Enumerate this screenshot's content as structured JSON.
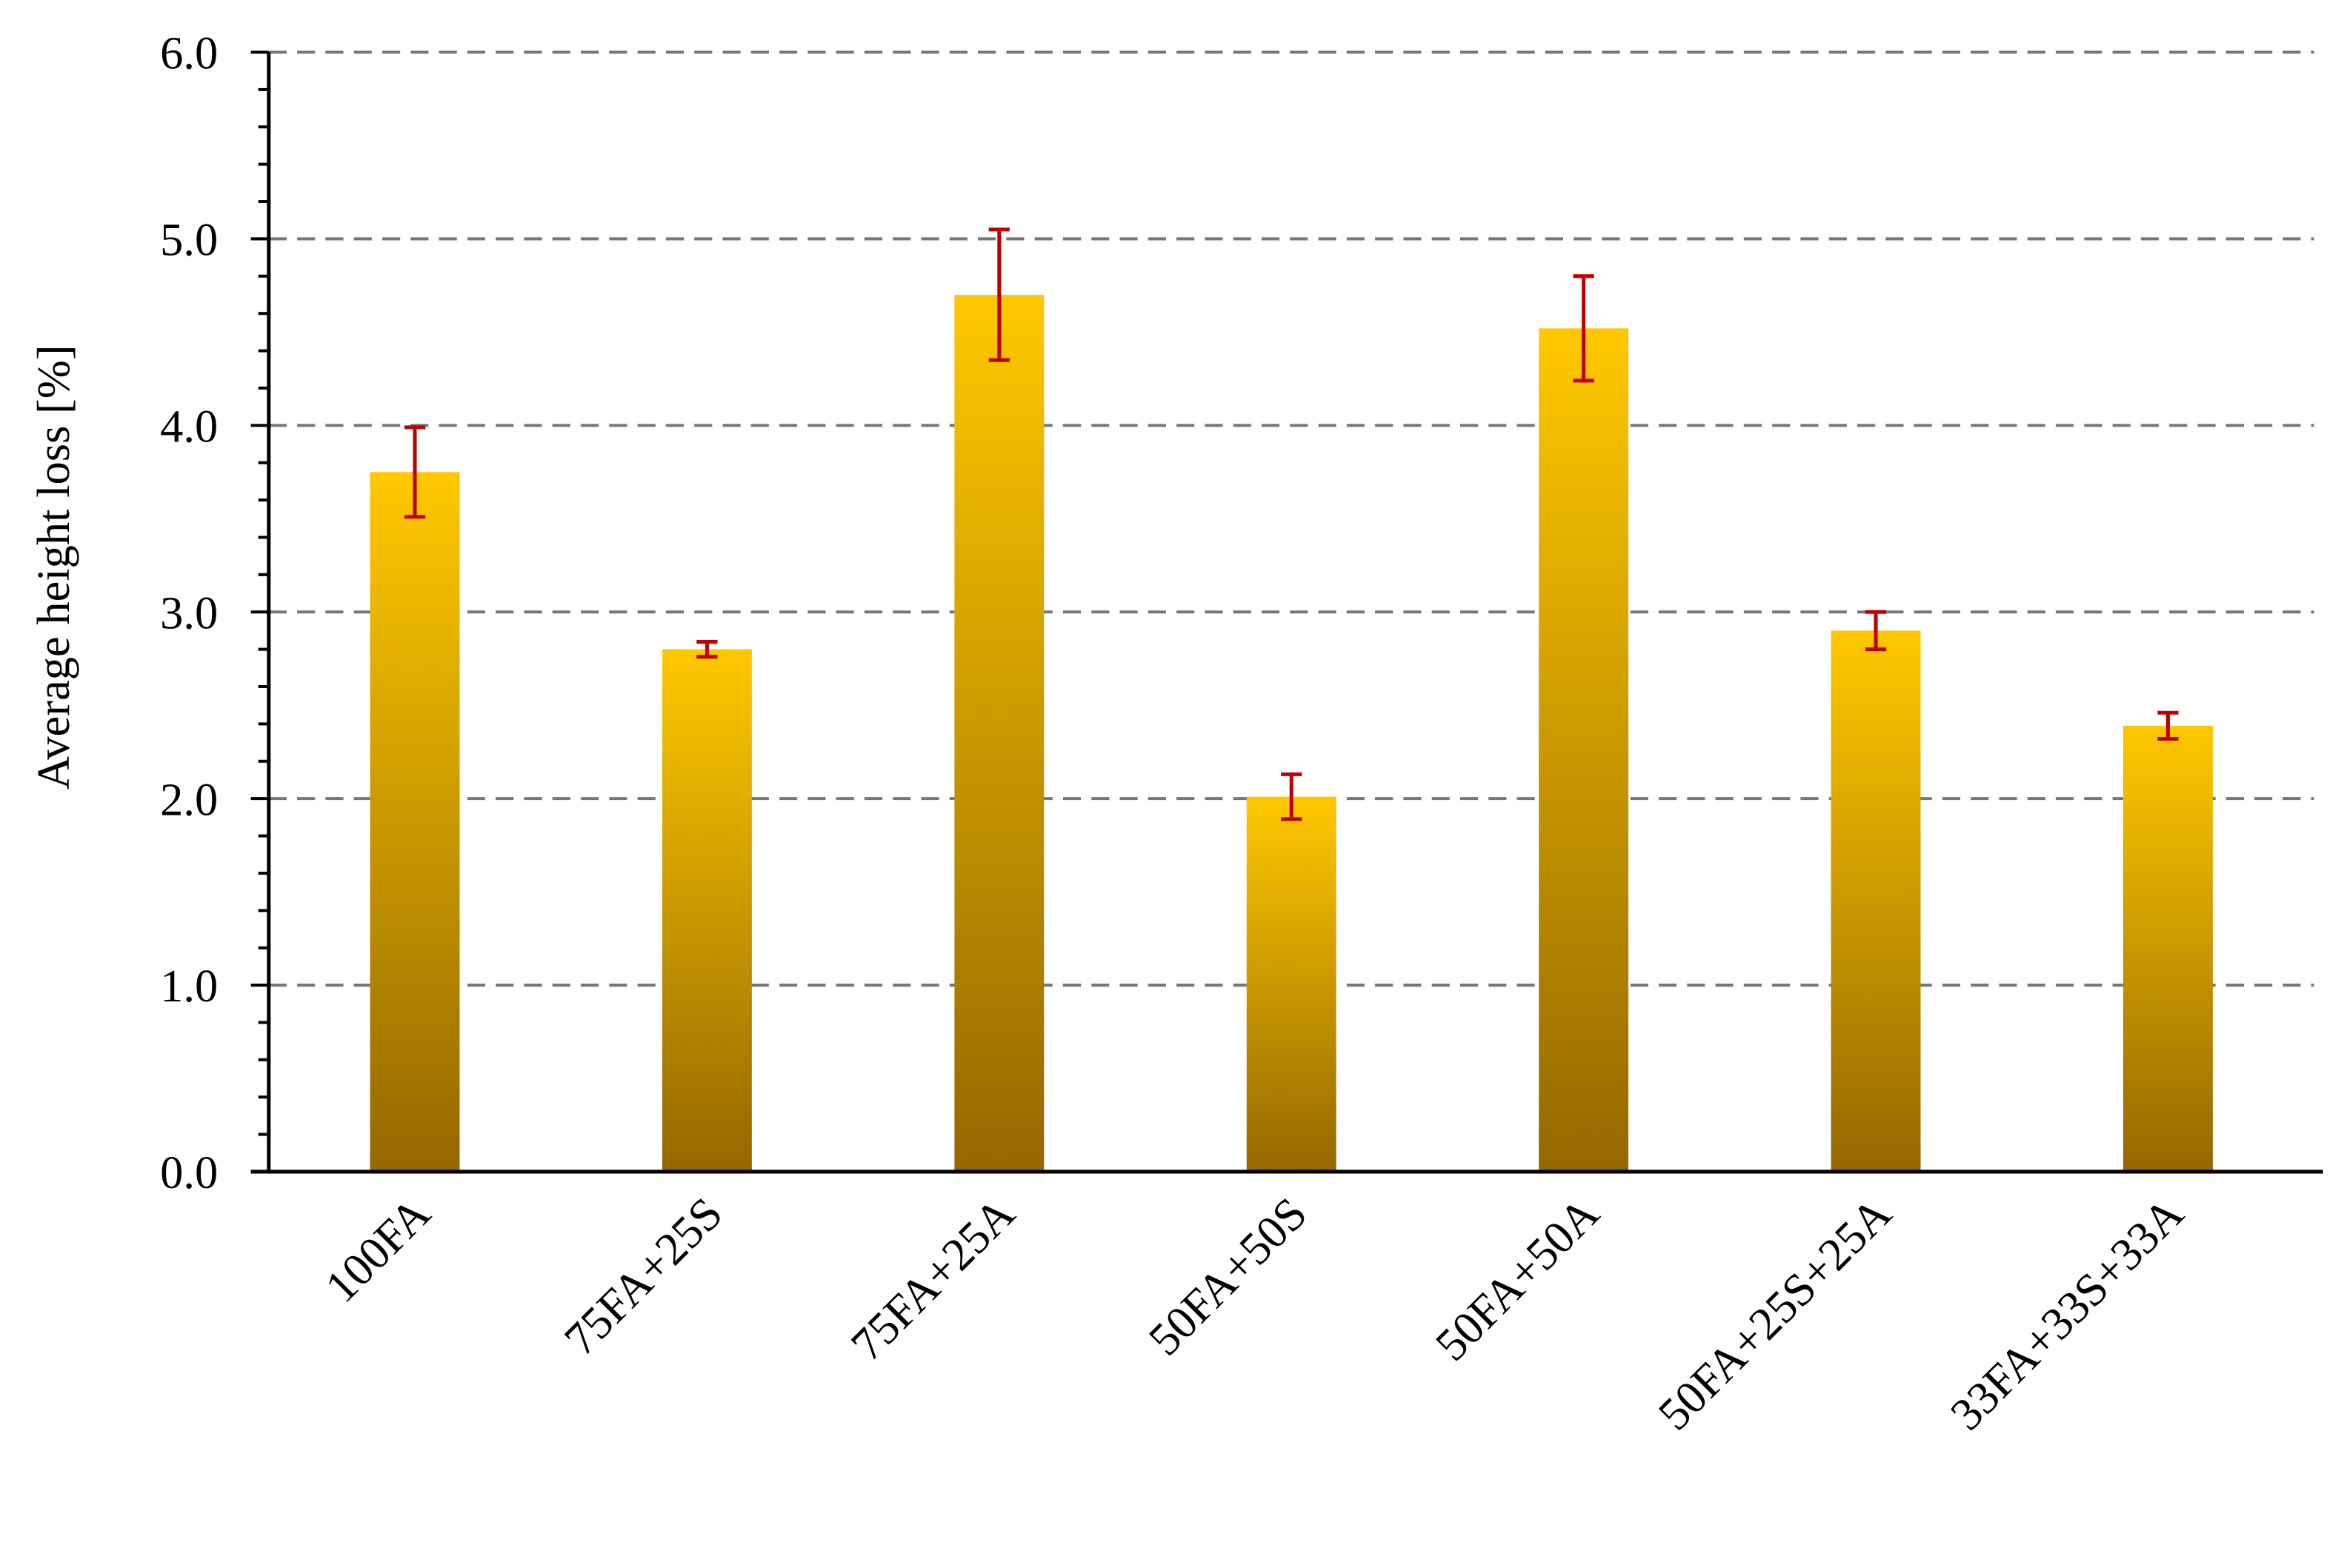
{
  "chart_data": {
    "type": "bar",
    "y_label": "Average height loss [%]",
    "categories": [
      "100FA",
      "75FA+25S",
      "75FA+25A",
      "50FA+50S",
      "50FA+50A",
      "50FA+25S+25A",
      "33FA+33S+33A"
    ],
    "values": [
      3.75,
      2.8,
      4.7,
      2.01,
      4.52,
      2.9,
      2.39
    ],
    "errors": [
      0.24,
      0.04,
      0.35,
      0.12,
      0.28,
      0.1,
      0.07
    ],
    "color": "#f5c000",
    "error_color": "#c00000",
    "ylim": [
      0,
      6
    ],
    "yticks": [
      {
        "value": 0,
        "label": "0.0"
      },
      {
        "value": 1,
        "label": "1.0"
      },
      {
        "value": 2,
        "label": "2.0"
      },
      {
        "value": 3,
        "label": "3.0"
      },
      {
        "value": 4,
        "label": "4.0"
      },
      {
        "value": 5,
        "label": "5.0"
      },
      {
        "value": 6,
        "label": "6.0"
      }
    ],
    "grid": true
  }
}
